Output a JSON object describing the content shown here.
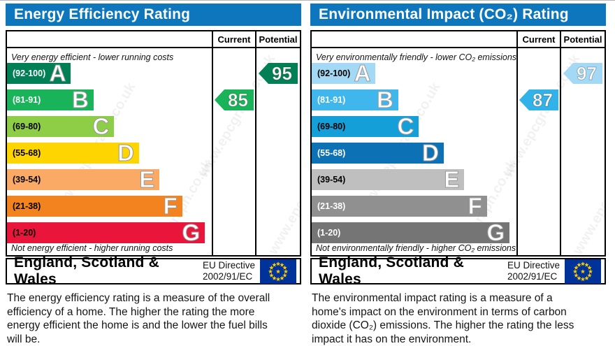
{
  "colors": {
    "header_bar": "#0d76bc",
    "box_border": "#000000",
    "flag_blue": "#003399",
    "flag_star": "#ffcc00"
  },
  "watermark": "www.epcgraph.co.uk",
  "panels": [
    {
      "title": "Energy Efficiency Rating",
      "columns": {
        "current": "Current",
        "potential": "Potential"
      },
      "top_caption": "Very energy efficient - lower running costs",
      "bottom_caption": "Not energy efficient - higher running costs",
      "bands": [
        {
          "letter": "A",
          "range": "(92-100)",
          "color": "#008054",
          "label_color": "#ffffff",
          "width_pct": 31
        },
        {
          "letter": "B",
          "range": "(81-91)",
          "color": "#19b459",
          "label_color": "#ffffff",
          "width_pct": 42
        },
        {
          "letter": "C",
          "range": "(69-80)",
          "color": "#8dce46",
          "label_color": "#000000",
          "width_pct": 52
        },
        {
          "letter": "D",
          "range": "(55-68)",
          "color": "#ffd500",
          "label_color": "#000000",
          "width_pct": 64
        },
        {
          "letter": "E",
          "range": "(39-54)",
          "color": "#fbaa65",
          "label_color": "#000000",
          "width_pct": 74
        },
        {
          "letter": "F",
          "range": "(21-38)",
          "color": "#f2831e",
          "label_color": "#000000",
          "width_pct": 85
        },
        {
          "letter": "G",
          "range": "(1-20)",
          "color": "#e9153b",
          "label_color": "#000000",
          "width_pct": 96
        }
      ],
      "current": {
        "label": "85",
        "color": "#19b459",
        "row": 1
      },
      "potential": {
        "label": "95",
        "color": "#008054",
        "row": 0
      },
      "footer": {
        "region": "England, Scotland & Wales",
        "directive_line1": "EU Directive",
        "directive_line2": "2002/91/EC"
      },
      "description": "The energy efficiency rating is a measure of the overall efficiency of a home. The higher the rating the more energy efficient the home is and the lower the fuel bills will be."
    },
    {
      "title": "Environmental Impact (CO₂) Rating",
      "columns": {
        "current": "Current",
        "potential": "Potential"
      },
      "top_caption": "Very environmentally friendly - lower CO₂ emissions",
      "bottom_caption": "Not environmentally friendly - higher CO₂ emissions",
      "bands": [
        {
          "letter": "A",
          "range": "(92-100)",
          "color": "#a3d9f4",
          "label_color": "#000000",
          "width_pct": 31
        },
        {
          "letter": "B",
          "range": "(81-91)",
          "color": "#3fb7ec",
          "label_color": "#ffffff",
          "width_pct": 42
        },
        {
          "letter": "C",
          "range": "(69-80)",
          "color": "#149fd8",
          "label_color": "#000000",
          "width_pct": 52
        },
        {
          "letter": "D",
          "range": "(55-68)",
          "color": "#0d72b5",
          "label_color": "#ffffff",
          "width_pct": 64
        },
        {
          "letter": "E",
          "range": "(39-54)",
          "color": "#bfbfbf",
          "label_color": "#000000",
          "width_pct": 74
        },
        {
          "letter": "F",
          "range": "(21-38)",
          "color": "#909090",
          "label_color": "#ffffff",
          "width_pct": 85
        },
        {
          "letter": "G",
          "range": "(1-20)",
          "color": "#757575",
          "label_color": "#ffffff",
          "width_pct": 96
        }
      ],
      "current": {
        "label": "87",
        "color": "#31b2e9",
        "row": 1
      },
      "potential": {
        "label": "97",
        "color": "#a3d9f4",
        "row": 0
      },
      "footer": {
        "region": "England, Scotland & Wales",
        "directive_line1": "EU Directive",
        "directive_line2": "2002/91/EC"
      },
      "description": "The environmental impact rating is a measure of a home's impact on the environment in terms of carbon dioxide (CO₂) emissions. The higher the rating the less impact it has on the environment."
    }
  ],
  "chart_data": [
    {
      "type": "bar",
      "title": "Energy Efficiency Rating",
      "categories": [
        "A",
        "B",
        "C",
        "D",
        "E",
        "F",
        "G"
      ],
      "band_ranges": [
        "92-100",
        "81-91",
        "69-80",
        "55-68",
        "39-54",
        "21-38",
        "1-20"
      ],
      "values": {
        "current": 85,
        "potential": 95
      },
      "current_band": "B",
      "potential_band": "A",
      "scale": [
        1,
        100
      ],
      "region": "England, Scotland & Wales",
      "directive": "EU Directive 2002/91/EC"
    },
    {
      "type": "bar",
      "title": "Environmental Impact (CO₂) Rating",
      "categories": [
        "A",
        "B",
        "C",
        "D",
        "E",
        "F",
        "G"
      ],
      "band_ranges": [
        "92-100",
        "81-91",
        "69-80",
        "55-68",
        "39-54",
        "21-38",
        "1-20"
      ],
      "values": {
        "current": 87,
        "potential": 97
      },
      "current_band": "B",
      "potential_band": "A",
      "scale": [
        1,
        100
      ],
      "region": "England, Scotland & Wales",
      "directive": "EU Directive 2002/91/EC"
    }
  ]
}
